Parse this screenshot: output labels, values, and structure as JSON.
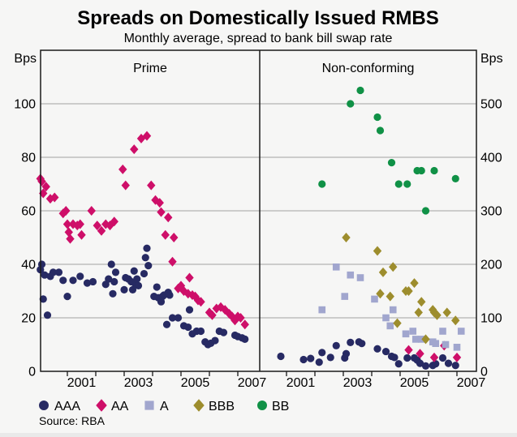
{
  "chart_data": {
    "type": "scatter",
    "title": "Spreads on Domestically Issued RMBS",
    "subtitle": "Monthly average, spread to bank bill swap rate",
    "source": "Source: RBA",
    "grid": true,
    "legend_position": "bottom",
    "axes": {
      "left": {
        "unit": "Bps",
        "ticks": [
          0,
          20,
          40,
          60,
          80,
          100
        ],
        "max": 120
      },
      "right": {
        "unit": "Bps",
        "ticks": [
          0,
          100,
          200,
          300,
          400,
          500
        ],
        "max": 600
      },
      "x": {
        "tick_years": [
          2001,
          2002,
          2003,
          2004,
          2005,
          2006,
          2007
        ],
        "label_years": [
          2001,
          2003,
          2005,
          2007
        ],
        "start": 2000.05,
        "end": 2007.7
      }
    },
    "legend": [
      {
        "label": "AAA",
        "marker": "circle",
        "color": "#272a63"
      },
      {
        "label": "AA",
        "marker": "diamond",
        "color": "#ce0f69"
      },
      {
        "label": "A",
        "marker": "square",
        "color": "#a1a6ce"
      },
      {
        "label": "BBB",
        "marker": "diamond",
        "color": "#9d8d2d"
      },
      {
        "label": "BB",
        "marker": "circle",
        "color": "#109146"
      }
    ],
    "panels": [
      {
        "title": "Prime",
        "value_axis": "left",
        "series": [
          {
            "rating": "AAA",
            "points": [
              [
                2000.05,
                38
              ],
              [
                2000.1,
                40
              ],
              [
                2000.15,
                27
              ],
              [
                2000.2,
                36
              ],
              [
                2000.3,
                21
              ],
              [
                2000.4,
                35.5
              ],
              [
                2000.5,
                37
              ],
              [
                2000.7,
                37
              ],
              [
                2000.85,
                34
              ],
              [
                2001.0,
                28
              ],
              [
                2001.2,
                34
              ],
              [
                2001.45,
                35.5
              ],
              [
                2001.7,
                33
              ],
              [
                2001.9,
                33.5
              ],
              [
                2002.35,
                32.5
              ],
              [
                2002.45,
                34.5
              ],
              [
                2002.55,
                40
              ],
              [
                2002.6,
                29
              ],
              [
                2002.65,
                33.5
              ],
              [
                2002.7,
                37
              ],
              [
                2003.0,
                30.5
              ],
              [
                2003.05,
                35
              ],
              [
                2003.15,
                34.5
              ],
              [
                2003.25,
                33.5
              ],
              [
                2003.3,
                30.5
              ],
              [
                2003.35,
                37.5
              ],
              [
                2003.4,
                32.5
              ],
              [
                2003.45,
                34.5
              ],
              [
                2003.5,
                32
              ],
              [
                2003.7,
                36.5
              ],
              [
                2003.75,
                42.5
              ],
              [
                2003.8,
                46
              ],
              [
                2003.85,
                39.5
              ],
              [
                2004.05,
                28
              ],
              [
                2004.15,
                31.5
              ],
              [
                2004.2,
                27.5
              ],
              [
                2004.3,
                26
              ],
              [
                2004.35,
                28
              ],
              [
                2004.4,
                28.5
              ],
              [
                2004.5,
                17.5
              ],
              [
                2004.55,
                29.5
              ],
              [
                2004.6,
                28.5
              ],
              [
                2004.7,
                20
              ],
              [
                2004.9,
                20
              ],
              [
                2005.1,
                17
              ],
              [
                2005.25,
                16.5
              ],
              [
                2005.3,
                23
              ],
              [
                2005.4,
                14
              ],
              [
                2005.55,
                15
              ],
              [
                2005.7,
                15
              ],
              [
                2005.85,
                11
              ],
              [
                2005.95,
                10
              ],
              [
                2006.05,
                10.5
              ],
              [
                2006.2,
                11.5
              ],
              [
                2006.35,
                15
              ],
              [
                2006.5,
                14.5
              ],
              [
                2006.9,
                13.5
              ],
              [
                2007.0,
                13
              ],
              [
                2007.15,
                12.5
              ],
              [
                2007.25,
                12
              ]
            ]
          },
          {
            "rating": "AA",
            "points": [
              [
                2000.05,
                72
              ],
              [
                2000.1,
                71
              ],
              [
                2000.15,
                66.5
              ],
              [
                2000.25,
                69
              ],
              [
                2000.4,
                64.5
              ],
              [
                2000.55,
                65
              ],
              [
                2000.85,
                59
              ],
              [
                2000.95,
                60
              ],
              [
                2001.0,
                55
              ],
              [
                2001.05,
                52
              ],
              [
                2001.1,
                49.5
              ],
              [
                2001.2,
                55
              ],
              [
                2001.35,
                54.5
              ],
              [
                2001.45,
                55
              ],
              [
                2001.5,
                51
              ],
              [
                2001.85,
                60
              ],
              [
                2002.05,
                54.5
              ],
              [
                2002.2,
                52.5
              ],
              [
                2002.35,
                55
              ],
              [
                2002.5,
                54.5
              ],
              [
                2002.65,
                56
              ],
              [
                2002.95,
                75.5
              ],
              [
                2003.05,
                69.5
              ],
              [
                2003.35,
                83
              ],
              [
                2003.6,
                87
              ],
              [
                2003.8,
                88
              ],
              [
                2003.95,
                69.5
              ],
              [
                2004.1,
                64
              ],
              [
                2004.25,
                63
              ],
              [
                2004.3,
                59.5
              ],
              [
                2004.45,
                51
              ],
              [
                2004.55,
                57.5
              ],
              [
                2004.7,
                41
              ],
              [
                2004.75,
                50
              ],
              [
                2004.9,
                31
              ],
              [
                2005.0,
                32
              ],
              [
                2005.1,
                30
              ],
              [
                2005.25,
                29
              ],
              [
                2005.3,
                35
              ],
              [
                2005.4,
                28.5
              ],
              [
                2005.5,
                28
              ],
              [
                2005.6,
                26.5
              ],
              [
                2005.7,
                26
              ],
              [
                2006.0,
                22
              ],
              [
                2006.1,
                21
              ],
              [
                2006.25,
                23.5
              ],
              [
                2006.4,
                24
              ],
              [
                2006.55,
                23
              ],
              [
                2006.7,
                21.5
              ],
              [
                2006.8,
                20.5
              ],
              [
                2006.9,
                19
              ],
              [
                2007.0,
                20.5
              ],
              [
                2007.1,
                20
              ],
              [
                2007.25,
                17.5
              ]
            ]
          }
        ]
      },
      {
        "title": "Non-conforming",
        "value_axis": "right",
        "series": [
          {
            "rating": "AAA",
            "points": [
              [
                2000.8,
                28
              ],
              [
                2001.6,
                22
              ],
              [
                2001.85,
                24
              ],
              [
                2002.15,
                17
              ],
              [
                2002.25,
                35
              ],
              [
                2002.55,
                26
              ],
              [
                2002.75,
                48
              ],
              [
                2003.05,
                25
              ],
              [
                2003.1,
                33
              ],
              [
                2003.25,
                54
              ],
              [
                2003.55,
                55
              ],
              [
                2003.65,
                52
              ],
              [
                2004.2,
                42
              ],
              [
                2004.5,
                37
              ],
              [
                2004.7,
                28
              ],
              [
                2004.8,
                26
              ],
              [
                2004.95,
                14
              ],
              [
                2005.25,
                25
              ],
              [
                2005.5,
                25
              ],
              [
                2005.6,
                21
              ],
              [
                2005.7,
                15
              ],
              [
                2005.9,
                10
              ],
              [
                2006.15,
                11
              ],
              [
                2006.25,
                14
              ],
              [
                2006.5,
                25
              ],
              [
                2006.7,
                15
              ],
              [
                2006.95,
                11
              ]
            ]
          },
          {
            "rating": "AA",
            "points": [
              [
                2005.3,
                40
              ],
              [
                2005.7,
                33
              ],
              [
                2006.2,
                26
              ],
              [
                2006.55,
                48
              ],
              [
                2007.0,
                26
              ]
            ]
          },
          {
            "rating": "A",
            "points": [
              [
                2002.25,
                115
              ],
              [
                2002.75,
                195
              ],
              [
                2003.05,
                140
              ],
              [
                2003.25,
                180
              ],
              [
                2003.6,
                175
              ],
              [
                2004.1,
                135
              ],
              [
                2004.5,
                100
              ],
              [
                2004.65,
                85
              ],
              [
                2004.75,
                115
              ],
              [
                2005.2,
                70
              ],
              [
                2005.45,
                75
              ],
              [
                2005.55,
                60
              ],
              [
                2005.75,
                60
              ],
              [
                2006.15,
                55
              ],
              [
                2006.25,
                52
              ],
              [
                2006.5,
                75
              ],
              [
                2006.6,
                50
              ],
              [
                2007.0,
                45
              ],
              [
                2007.15,
                75
              ]
            ]
          },
          {
            "rating": "BBB",
            "points": [
              [
                2003.1,
                250
              ],
              [
                2004.2,
                225
              ],
              [
                2004.3,
                145
              ],
              [
                2004.4,
                185
              ],
              [
                2004.65,
                140
              ],
              [
                2004.75,
                195
              ],
              [
                2004.9,
                90
              ],
              [
                2005.2,
                150
              ],
              [
                2005.3,
                150
              ],
              [
                2005.5,
                165
              ],
              [
                2005.65,
                110
              ],
              [
                2005.75,
                130
              ],
              [
                2005.9,
                60
              ],
              [
                2006.15,
                115
              ],
              [
                2006.2,
                110
              ],
              [
                2006.3,
                105
              ],
              [
                2006.65,
                110
              ],
              [
                2006.95,
                95
              ]
            ]
          },
          {
            "rating": "BB",
            "points": [
              [
                2002.25,
                350
              ],
              [
                2003.25,
                500
              ],
              [
                2003.6,
                525
              ],
              [
                2004.2,
                475
              ],
              [
                2004.3,
                450
              ],
              [
                2004.7,
                390
              ],
              [
                2004.95,
                350
              ],
              [
                2005.25,
                350
              ],
              [
                2005.6,
                375
              ],
              [
                2005.75,
                375
              ],
              [
                2005.9,
                300
              ],
              [
                2006.2,
                375
              ],
              [
                2006.95,
                360
              ]
            ]
          }
        ]
      }
    ]
  }
}
